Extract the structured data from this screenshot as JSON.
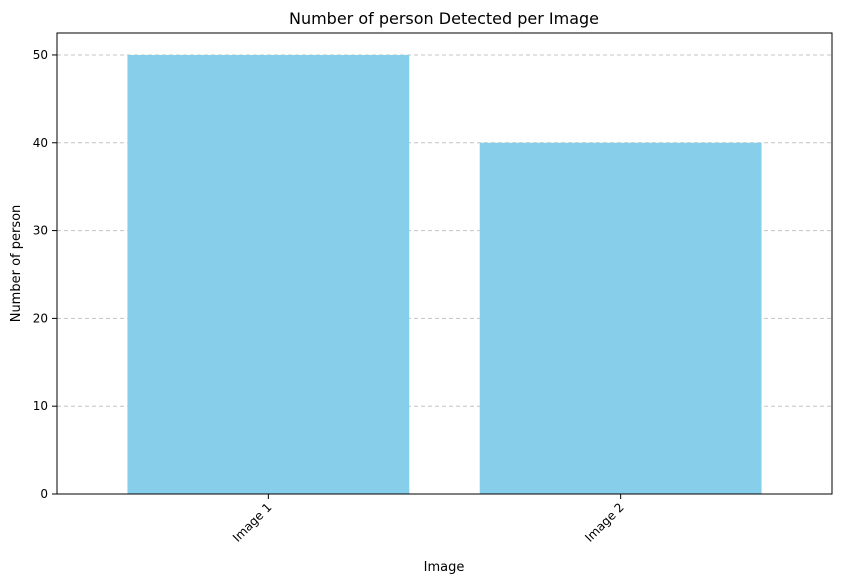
{
  "chart_data": {
    "type": "bar",
    "title": "Number of person Detected per Image",
    "xlabel": "Image",
    "ylabel": "Number of person",
    "categories": [
      "Image 1",
      "Image 2"
    ],
    "values": [
      50,
      40
    ],
    "ylim": [
      0,
      52.5
    ],
    "yticks": [
      0,
      10,
      20,
      30,
      40,
      50
    ],
    "bar_color": "#87CEEB",
    "grid": "y-axis, dashed",
    "legend": "none",
    "xtick_rotation": "45 degrees"
  }
}
